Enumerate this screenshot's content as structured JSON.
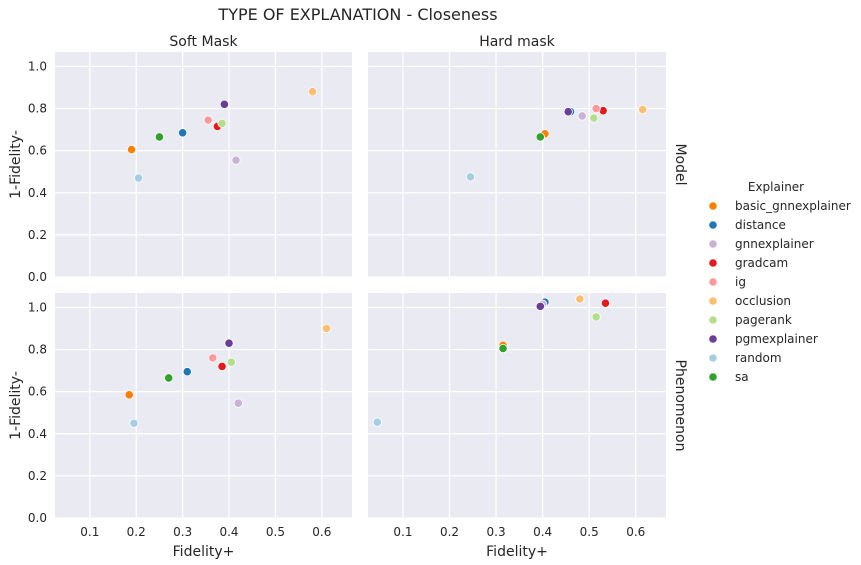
{
  "chart_data": {
    "type": "scatter",
    "title": "TYPE OF EXPLANATION - Closeness",
    "columns": [
      "Soft Mask",
      "Hard mask"
    ],
    "rows": [
      "Model",
      "Phenomenon"
    ],
    "xlabel": "Fidelity+",
    "ylabel": "1-Fidelity-",
    "xlim": [
      0.025,
      0.665
    ],
    "ylim": [
      0.0,
      1.04
    ],
    "xticks": [
      "0.1",
      "0.2",
      "0.3",
      "0.4",
      "0.5",
      "0.6"
    ],
    "yticks": [
      "0.0",
      "0.2",
      "0.4",
      "0.6",
      "0.8",
      "1.0"
    ],
    "grid": true,
    "legend": {
      "title": "Explainer",
      "placement": "right",
      "entries": [
        {
          "name": "basic_gnnexplainer",
          "color": "#ff7f00"
        },
        {
          "name": "distance",
          "color": "#1f78b4"
        },
        {
          "name": "gnnexplainer",
          "color": "#cab2d6"
        },
        {
          "name": "gradcam",
          "color": "#e31a1c"
        },
        {
          "name": "ig",
          "color": "#fb9a99"
        },
        {
          "name": "occlusion",
          "color": "#fdbf6f"
        },
        {
          "name": "pagerank",
          "color": "#b2df8a"
        },
        {
          "name": "pgmexplainer",
          "color": "#6a3d9a"
        },
        {
          "name": "random",
          "color": "#a6cee3"
        },
        {
          "name": "sa",
          "color": "#33a02c"
        }
      ]
    },
    "panels": [
      {
        "row": "Model",
        "col": "Soft Mask",
        "points": [
          {
            "series": "basic_gnnexplainer",
            "x": 0.19,
            "y": 0.605
          },
          {
            "series": "distance",
            "x": 0.3,
            "y": 0.685
          },
          {
            "series": "gnnexplainer",
            "x": 0.415,
            "y": 0.555
          },
          {
            "series": "gradcam",
            "x": 0.375,
            "y": 0.715
          },
          {
            "series": "ig",
            "x": 0.355,
            "y": 0.745
          },
          {
            "series": "occlusion",
            "x": 0.58,
            "y": 0.88
          },
          {
            "series": "pagerank",
            "x": 0.385,
            "y": 0.73
          },
          {
            "series": "pgmexplainer",
            "x": 0.39,
            "y": 0.82
          },
          {
            "series": "random",
            "x": 0.205,
            "y": 0.47
          },
          {
            "series": "sa",
            "x": 0.25,
            "y": 0.665
          }
        ]
      },
      {
        "row": "Model",
        "col": "Hard mask",
        "points": [
          {
            "series": "basic_gnnexplainer",
            "x": 0.405,
            "y": 0.68
          },
          {
            "series": "distance",
            "x": 0.46,
            "y": 0.785
          },
          {
            "series": "gnnexplainer",
            "x": 0.485,
            "y": 0.765
          },
          {
            "series": "gradcam",
            "x": 0.53,
            "y": 0.79
          },
          {
            "series": "ig",
            "x": 0.515,
            "y": 0.8
          },
          {
            "series": "occlusion",
            "x": 0.615,
            "y": 0.795
          },
          {
            "series": "pagerank",
            "x": 0.51,
            "y": 0.755
          },
          {
            "series": "pgmexplainer",
            "x": 0.455,
            "y": 0.785
          },
          {
            "series": "random",
            "x": 0.245,
            "y": 0.475
          },
          {
            "series": "sa",
            "x": 0.395,
            "y": 0.665
          }
        ]
      },
      {
        "row": "Phenomenon",
        "col": "Soft Mask",
        "points": [
          {
            "series": "basic_gnnexplainer",
            "x": 0.185,
            "y": 0.585
          },
          {
            "series": "distance",
            "x": 0.31,
            "y": 0.695
          },
          {
            "series": "gnnexplainer",
            "x": 0.42,
            "y": 0.545
          },
          {
            "series": "gradcam",
            "x": 0.385,
            "y": 0.72
          },
          {
            "series": "ig",
            "x": 0.365,
            "y": 0.76
          },
          {
            "series": "occlusion",
            "x": 0.61,
            "y": 0.9
          },
          {
            "series": "pagerank",
            "x": 0.405,
            "y": 0.74
          },
          {
            "series": "pgmexplainer",
            "x": 0.4,
            "y": 0.83
          },
          {
            "series": "random",
            "x": 0.195,
            "y": 0.45
          },
          {
            "series": "sa",
            "x": 0.27,
            "y": 0.665
          }
        ]
      },
      {
        "row": "Phenomenon",
        "col": "Hard mask",
        "points": [
          {
            "series": "basic_gnnexplainer",
            "x": 0.315,
            "y": 0.82
          },
          {
            "series": "distance",
            "x": 0.405,
            "y": 1.025
          },
          {
            "series": "gnnexplainer",
            "x": 0.4,
            "y": 1.015
          },
          {
            "series": "gradcam",
            "x": 0.535,
            "y": 1.02
          },
          {
            "series": "ig",
            "x": 0.48,
            "y": 1.04
          },
          {
            "series": "occlusion",
            "x": 0.48,
            "y": 1.04
          },
          {
            "series": "pagerank",
            "x": 0.515,
            "y": 0.955
          },
          {
            "series": "pgmexplainer",
            "x": 0.395,
            "y": 1.005
          },
          {
            "series": "random",
            "x": 0.045,
            "y": 0.455
          },
          {
            "series": "sa",
            "x": 0.315,
            "y": 0.805
          }
        ]
      }
    ]
  }
}
